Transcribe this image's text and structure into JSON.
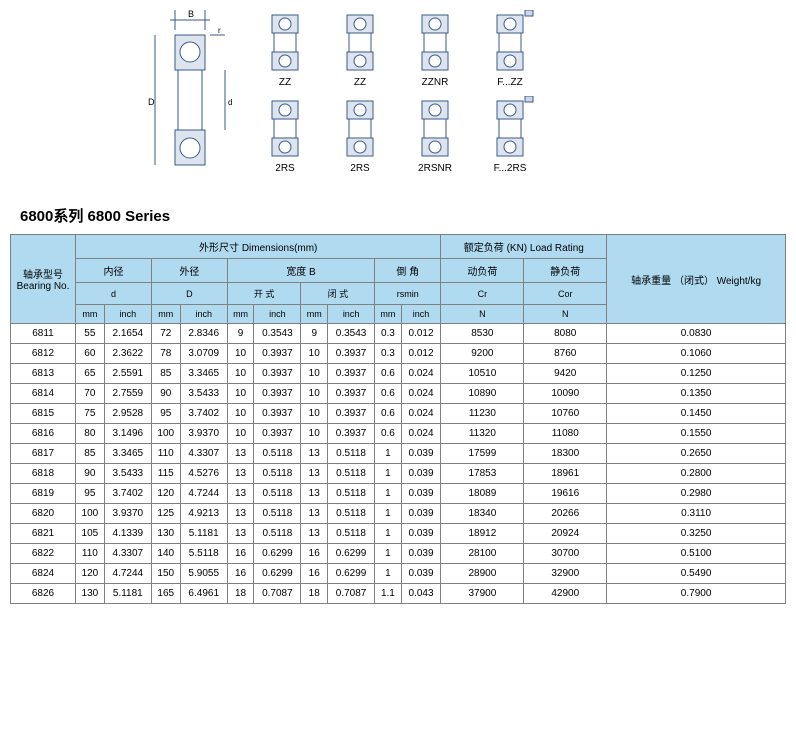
{
  "diagram_labels": {
    "row1": [
      "ZZ",
      "ZZ",
      "ZZNR",
      "F...ZZ"
    ],
    "row2": [
      "2RS",
      "2RS",
      "2RSNR",
      "F...2RS"
    ],
    "dim_labels": [
      "B",
      "r",
      "r",
      "D",
      "d"
    ]
  },
  "series_title": "6800系列 6800 Series",
  "headers": {
    "bearing_no": "轴承型号\nBearing No.",
    "dimensions": "外形尺寸 Dimensions(mm)",
    "inner": "内径",
    "inner_sub": "d",
    "outer": "外径",
    "outer_sub": "D",
    "width": "宽度 B",
    "open": "开 式",
    "closed": "闭 式",
    "chamfer": "倒 角",
    "chamfer_sub": "rsmin",
    "load": "额定负荷 (KN) Load Rating",
    "dynamic": "动负荷",
    "dyn_sub": "Cr",
    "static": "静负荷",
    "stat_sub": "Cor",
    "weight": "轴承重量\n（闭式）\nWeight/kg",
    "mm": "mm",
    "inch": "inch",
    "N": "N"
  },
  "rows": [
    {
      "bn": "6811",
      "d_mm": "55",
      "d_in": "2.1654",
      "D_mm": "72",
      "D_in": "2.8346",
      "bo_mm": "9",
      "bo_in": "0.3543",
      "bc_mm": "9",
      "bc_in": "0.3543",
      "r_mm": "0.3",
      "r_in": "0.012",
      "cr": "8530",
      "cor": "8080",
      "wt": "0.0830"
    },
    {
      "bn": "6812",
      "d_mm": "60",
      "d_in": "2.3622",
      "D_mm": "78",
      "D_in": "3.0709",
      "bo_mm": "10",
      "bo_in": "0.3937",
      "bc_mm": "10",
      "bc_in": "0.3937",
      "r_mm": "0.3",
      "r_in": "0.012",
      "cr": "9200",
      "cor": "8760",
      "wt": "0.1060"
    },
    {
      "bn": "6813",
      "d_mm": "65",
      "d_in": "2.5591",
      "D_mm": "85",
      "D_in": "3.3465",
      "bo_mm": "10",
      "bo_in": "0.3937",
      "bc_mm": "10",
      "bc_in": "0.3937",
      "r_mm": "0.6",
      "r_in": "0.024",
      "cr": "10510",
      "cor": "9420",
      "wt": "0.1250"
    },
    {
      "bn": "6814",
      "d_mm": "70",
      "d_in": "2.7559",
      "D_mm": "90",
      "D_in": "3.5433",
      "bo_mm": "10",
      "bo_in": "0.3937",
      "bc_mm": "10",
      "bc_in": "0.3937",
      "r_mm": "0.6",
      "r_in": "0.024",
      "cr": "10890",
      "cor": "10090",
      "wt": "0.1350"
    },
    {
      "bn": "6815",
      "d_mm": "75",
      "d_in": "2.9528",
      "D_mm": "95",
      "D_in": "3.7402",
      "bo_mm": "10",
      "bo_in": "0.3937",
      "bc_mm": "10",
      "bc_in": "0.3937",
      "r_mm": "0.6",
      "r_in": "0.024",
      "cr": "11230",
      "cor": "10760",
      "wt": "0.1450"
    },
    {
      "bn": "6816",
      "d_mm": "80",
      "d_in": "3.1496",
      "D_mm": "100",
      "D_in": "3.9370",
      "bo_mm": "10",
      "bo_in": "0.3937",
      "bc_mm": "10",
      "bc_in": "0.3937",
      "r_mm": "0.6",
      "r_in": "0.024",
      "cr": "11320",
      "cor": "11080",
      "wt": "0.1550"
    },
    {
      "bn": "6817",
      "d_mm": "85",
      "d_in": "3.3465",
      "D_mm": "110",
      "D_in": "4.3307",
      "bo_mm": "13",
      "bo_in": "0.5118",
      "bc_mm": "13",
      "bc_in": "0.5118",
      "r_mm": "1",
      "r_in": "0.039",
      "cr": "17599",
      "cor": "18300",
      "wt": "0.2650"
    },
    {
      "bn": "6818",
      "d_mm": "90",
      "d_in": "3.5433",
      "D_mm": "115",
      "D_in": "4.5276",
      "bo_mm": "13",
      "bo_in": "0.5118",
      "bc_mm": "13",
      "bc_in": "0.5118",
      "r_mm": "1",
      "r_in": "0.039",
      "cr": "17853",
      "cor": "18961",
      "wt": "0.2800"
    },
    {
      "bn": "6819",
      "d_mm": "95",
      "d_in": "3.7402",
      "D_mm": "120",
      "D_in": "4.7244",
      "bo_mm": "13",
      "bo_in": "0.5118",
      "bc_mm": "13",
      "bc_in": "0.5118",
      "r_mm": "1",
      "r_in": "0.039",
      "cr": "18089",
      "cor": "19616",
      "wt": "0.2980"
    },
    {
      "bn": "6820",
      "d_mm": "100",
      "d_in": "3.9370",
      "D_mm": "125",
      "D_in": "4.9213",
      "bo_mm": "13",
      "bo_in": "0.5118",
      "bc_mm": "13",
      "bc_in": "0.5118",
      "r_mm": "1",
      "r_in": "0.039",
      "cr": "18340",
      "cor": "20266",
      "wt": "0.3110"
    },
    {
      "bn": "6821",
      "d_mm": "105",
      "d_in": "4.1339",
      "D_mm": "130",
      "D_in": "5.1181",
      "bo_mm": "13",
      "bo_in": "0.5118",
      "bc_mm": "13",
      "bc_in": "0.5118",
      "r_mm": "1",
      "r_in": "0.039",
      "cr": "18912",
      "cor": "20924",
      "wt": "0.3250"
    },
    {
      "bn": "6822",
      "d_mm": "110",
      "d_in": "4.3307",
      "D_mm": "140",
      "D_in": "5.5118",
      "bo_mm": "16",
      "bo_in": "0.6299",
      "bc_mm": "16",
      "bc_in": "0.6299",
      "r_mm": "1",
      "r_in": "0.039",
      "cr": "28100",
      "cor": "30700",
      "wt": "0.5100"
    },
    {
      "bn": "6824",
      "d_mm": "120",
      "d_in": "4.7244",
      "D_mm": "150",
      "D_in": "5.9055",
      "bo_mm": "16",
      "bo_in": "0.6299",
      "bc_mm": "16",
      "bc_in": "0.6299",
      "r_mm": "1",
      "r_in": "0.039",
      "cr": "28900",
      "cor": "32900",
      "wt": "0.5490"
    },
    {
      "bn": "6826",
      "d_mm": "130",
      "d_in": "5.1181",
      "D_mm": "165",
      "D_in": "6.4961",
      "bo_mm": "18",
      "bo_in": "0.7087",
      "bc_mm": "18",
      "bc_in": "0.7087",
      "r_mm": "1.1",
      "r_in": "0.043",
      "cr": "37900",
      "cor": "42900",
      "wt": "0.7900"
    }
  ],
  "style": {
    "header_bg": "#b0daf0",
    "border": "#808080",
    "text": "#000000",
    "font_size": 10
  }
}
